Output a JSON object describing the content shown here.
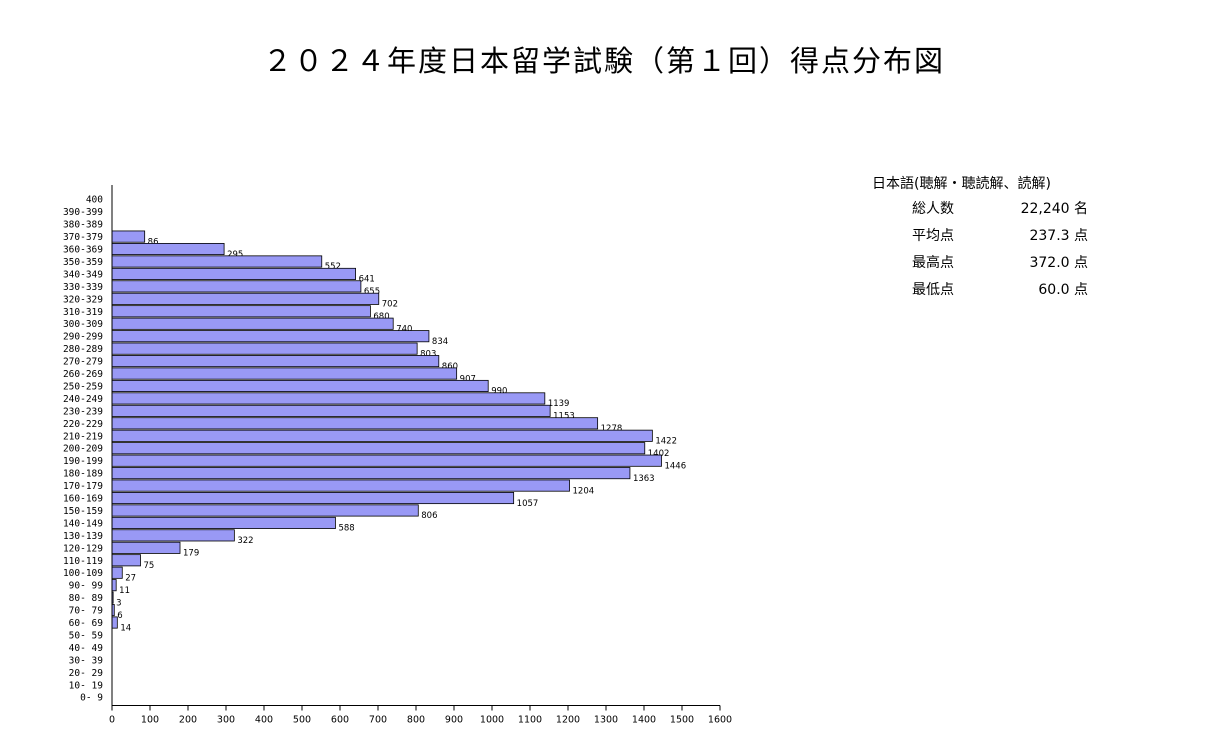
{
  "title": "２０２４年度日本留学試験（第１回）得点分布図",
  "stats": {
    "header": "日本語(聴解・聴読解、読解)",
    "rows": [
      {
        "label": "総人数",
        "value": "22,240 名"
      },
      {
        "label": "平均点",
        "value": "237.3 点"
      },
      {
        "label": "最高点",
        "value": "372.0 点"
      },
      {
        "label": "最低点",
        "value": "60.0 点"
      }
    ]
  },
  "chart_data": {
    "type": "bar",
    "orientation": "horizontal",
    "categories": [
      "400",
      "390-399",
      "380-389",
      "370-379",
      "360-369",
      "350-359",
      "340-349",
      "330-339",
      "320-329",
      "310-319",
      "300-309",
      "290-299",
      "280-289",
      "270-279",
      "260-269",
      "250-259",
      "240-249",
      "230-239",
      "220-229",
      "210-219",
      "200-209",
      "190-199",
      "180-189",
      "170-179",
      "160-169",
      "150-159",
      "140-149",
      "130-139",
      "120-129",
      "110-119",
      "100-109",
      "90- 99",
      "80- 89",
      "70- 79",
      "60- 69",
      "50- 59",
      "40- 49",
      "30- 39",
      "20- 29",
      "10- 19",
      "0-  9"
    ],
    "values": [
      null,
      null,
      null,
      86,
      295,
      552,
      641,
      655,
      702,
      680,
      740,
      834,
      803,
      860,
      907,
      990,
      1139,
      1153,
      1278,
      1422,
      1402,
      1446,
      1363,
      1204,
      1057,
      806,
      588,
      322,
      179,
      75,
      27,
      11,
      3,
      6,
      14,
      null,
      null,
      null,
      null,
      null,
      null
    ],
    "xlim": [
      0,
      1600
    ],
    "xticks": [
      "0",
      "100",
      "200",
      "300",
      "400",
      "500",
      "600",
      "700",
      "800",
      "900",
      "1000",
      "1100",
      "1200",
      "1300",
      "1400",
      "1500",
      "1600"
    ],
    "bar_color": "#9999f5",
    "bar_edge_color": "#000000",
    "grid": false,
    "data_labels": true
  }
}
